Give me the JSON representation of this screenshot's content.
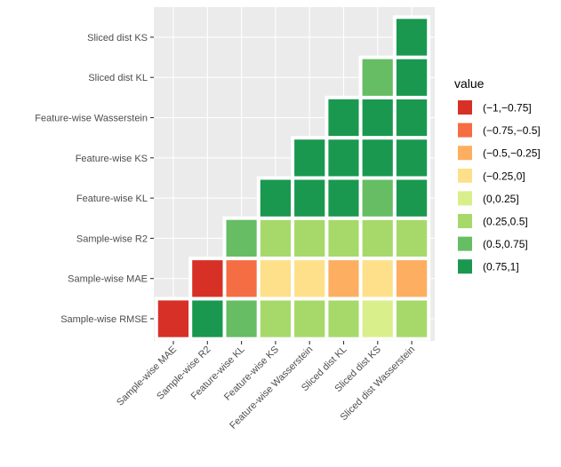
{
  "chart_data": {
    "type": "heatmap",
    "title": "",
    "xlabel": "",
    "ylabel": "",
    "x_categories": [
      "Sample-wise MAE",
      "Sample-wise R2",
      "Feature-wise KL",
      "Feature-wise KS",
      "Feature-wise Wasserstein",
      "Sliced dist KL",
      "Sliced dist KS",
      "Sliced dist Wasserstein"
    ],
    "y_categories": [
      "Sample-wise RMSE",
      "Sample-wise MAE",
      "Sample-wise R2",
      "Feature-wise KL",
      "Feature-wise KS",
      "Feature-wise Wasserstein",
      "Sliced dist KL",
      "Sliced dist KS"
    ],
    "cells": [
      [
        "Sample-wise RMSE",
        [
          "(-1,-0.75]",
          "(0.75,1]",
          "(0.5,0.75]",
          "(0.25,0.5]",
          "(0.25,0.5]",
          "(0.25,0.5]",
          "(0,0.25]",
          "(0.25,0.5]"
        ]
      ],
      [
        "Sample-wise MAE",
        [
          null,
          "(-1,-0.75]",
          "(-0.75,-0.5]",
          "(-0.25,0]",
          "(-0.25,0]",
          "(-0.5,-0.25]",
          "(-0.25,0]",
          "(-0.5,-0.25]"
        ]
      ],
      [
        "Sample-wise R2",
        [
          null,
          null,
          "(0.5,0.75]",
          "(0.25,0.5]",
          "(0.25,0.5]",
          "(0.25,0.5]",
          "(0.25,0.5]",
          "(0.25,0.5]"
        ]
      ],
      [
        "Feature-wise KL",
        [
          null,
          null,
          null,
          "(0.75,1]",
          "(0.75,1]",
          "(0.75,1]",
          "(0.5,0.75]",
          "(0.75,1]"
        ]
      ],
      [
        "Feature-wise KS",
        [
          null,
          null,
          null,
          null,
          "(0.75,1]",
          "(0.75,1]",
          "(0.75,1]",
          "(0.75,1]"
        ]
      ],
      [
        "Feature-wise Wasserstein",
        [
          null,
          null,
          null,
          null,
          null,
          "(0.75,1]",
          "(0.75,1]",
          "(0.75,1]"
        ]
      ],
      [
        "Sliced dist KL",
        [
          null,
          null,
          null,
          null,
          null,
          null,
          "(0.5,0.75]",
          "(0.75,1]"
        ]
      ],
      [
        "Sliced dist KS",
        [
          null,
          null,
          null,
          null,
          null,
          null,
          null,
          "(0.75,1]"
        ]
      ]
    ],
    "legend": {
      "title": "value",
      "position": "right",
      "entries": [
        {
          "label": "(−1,−0.75]",
          "key": "(-1,-0.75]",
          "color": "#d73027"
        },
        {
          "label": "(−0.75,−0.5]",
          "key": "(-0.75,-0.5]",
          "color": "#f46d43"
        },
        {
          "label": "(−0.5,−0.25]",
          "key": "(-0.5,-0.25]",
          "color": "#fdae61"
        },
        {
          "label": "(−0.25,0]",
          "key": "(-0.25,0]",
          "color": "#fee08b"
        },
        {
          "label": "(0,0.25]",
          "key": "(0,0.25]",
          "color": "#d9ef8b"
        },
        {
          "label": "(0.25,0.5]",
          "key": "(0.25,0.5]",
          "color": "#a6d96a"
        },
        {
          "label": "(0.5,0.75]",
          "key": "(0.5,0.75]",
          "color": "#66bd63"
        },
        {
          "label": "(0.75,1]",
          "key": "(0.75,1]",
          "color": "#1a9850"
        }
      ]
    },
    "panel_background": "#ebebeb",
    "grid": true
  }
}
